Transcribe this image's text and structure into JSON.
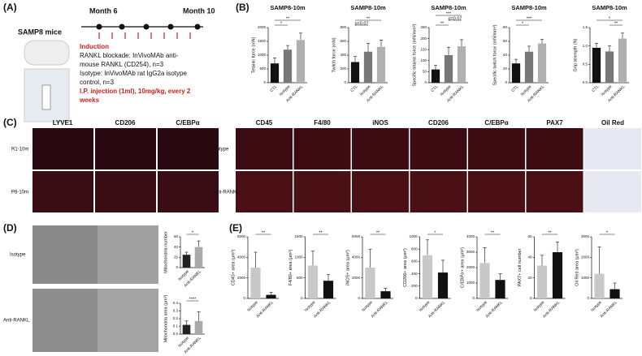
{
  "panels": {
    "a": {
      "label": "(A)",
      "strain": "SAMP8 mice",
      "start": "Month 6",
      "end": "Month 10",
      "lines": [
        "Induction",
        "RANKL blockade: InVivoMAb anti-",
        "mouse RANKL (CD254), n=3",
        "Isotype: InVivoMAb rat IgG2a isotype",
        "control, n=3",
        "I.P. injection (1ml), 10mg/kg, every 2",
        "weeks"
      ]
    },
    "b": {
      "label": "(B)"
    },
    "c": {
      "label": "(C)",
      "left_columns": [
        "LYVE1",
        "CD206",
        "C/EBPα"
      ],
      "left_rows": [
        "R1-10m",
        "P8-10m"
      ],
      "right_columns": [
        "CD45",
        "F4/80",
        "iNOS",
        "CD206",
        "C/EBPα",
        "PAX7",
        "Oil Red"
      ],
      "right_rows": [
        "Isotype",
        "Anti-RANKL"
      ]
    },
    "d": {
      "label": "(D)",
      "rows": [
        "Isotype",
        "Anti-RANKL"
      ]
    },
    "e": {
      "label": "(E)"
    }
  },
  "chart_data": [
    {
      "type": "bar",
      "title": "SAMP8-10m",
      "ylabel": "Tetanic force (mN)",
      "categories": [
        "CTL",
        "Isotype",
        "Anti-RANKL"
      ],
      "values": [
        700,
        1200,
        1550
      ],
      "errors": [
        200,
        150,
        250
      ],
      "colors": [
        "#111111",
        "#777777",
        "#b0b0b0"
      ],
      "ylim": [
        0,
        2000
      ],
      "yticks": [
        0,
        500,
        1000,
        1500,
        2000
      ],
      "annotations": [
        {
          "text": "*",
          "pair": [
            0,
            1
          ]
        },
        {
          "text": "**",
          "pair": [
            0,
            2
          ]
        }
      ]
    },
    {
      "type": "bar",
      "title": "SAMP8-10m",
      "ylabel": "Twitch force (mN)",
      "categories": [
        "CTL",
        "Isotype",
        "Anti-RANKL"
      ],
      "values": [
        300,
        450,
        520
      ],
      "errors": [
        80,
        120,
        100
      ],
      "colors": [
        "#111111",
        "#777777",
        "#b0b0b0"
      ],
      "ylim": [
        0,
        800
      ],
      "yticks": [
        0,
        200,
        400,
        600,
        800
      ],
      "annotations": [
        {
          "text": "p=0.07",
          "pair": [
            0,
            1
          ]
        },
        {
          "text": "**",
          "pair": [
            0,
            2
          ]
        }
      ]
    },
    {
      "type": "bar",
      "title": "SAMP8-10m",
      "ylabel": "Specific tetanic force (mN/mm²)",
      "categories": [
        "CTL",
        "Isotype",
        "Anti-RANKL"
      ],
      "values": [
        60,
        125,
        165
      ],
      "errors": [
        20,
        35,
        30
      ],
      "colors": [
        "#111111",
        "#777777",
        "#b0b0b0"
      ],
      "ylim": [
        0,
        250
      ],
      "yticks": [
        0,
        50,
        100,
        150,
        200,
        250
      ],
      "annotations": [
        {
          "text": "**",
          "pair": [
            0,
            1
          ]
        },
        {
          "text": "p=0.07",
          "pair": [
            1,
            2
          ]
        },
        {
          "text": "***",
          "pair": [
            0,
            2
          ]
        }
      ]
    },
    {
      "type": "bar",
      "title": "SAMP8-10m",
      "ylabel": "Specific twitch force (mN/mm²)",
      "categories": [
        "CTL",
        "Isotype",
        "Anti-RANKL"
      ],
      "values": [
        28,
        45,
        57
      ],
      "errors": [
        6,
        8,
        6
      ],
      "colors": [
        "#111111",
        "#777777",
        "#b0b0b0"
      ],
      "ylim": [
        0,
        80
      ],
      "yticks": [
        0,
        20,
        40,
        60,
        80
      ],
      "annotations": [
        {
          "text": "*",
          "pair": [
            0,
            1
          ]
        },
        {
          "text": "***",
          "pair": [
            0,
            2
          ]
        }
      ]
    },
    {
      "type": "bar",
      "title": "SAMP8-10m",
      "ylabel": "Grip strength (N)",
      "categories": [
        "CTL",
        "Isotype",
        "Anti-RANKL"
      ],
      "values": [
        0.95,
        0.85,
        1.2
      ],
      "errors": [
        0.12,
        0.15,
        0.15
      ],
      "colors": [
        "#111111",
        "#777777",
        "#b0b0b0"
      ],
      "ylim": [
        0,
        1.5
      ],
      "yticks": [
        {
          "value": 0,
          "label": "0.0"
        },
        0.5,
        {
          "value": 1,
          "label": "1.0"
        },
        1.5
      ],
      "annotations": [
        {
          "text": "**",
          "pair": [
            1,
            2
          ]
        },
        {
          "text": "*",
          "pair": [
            0,
            2
          ]
        }
      ]
    },
    {
      "type": "bar",
      "ylabel": "Mitochondria number",
      "categories": [
        "Isotype",
        "Anti-RANKL"
      ],
      "values": [
        25,
        40
      ],
      "errors": [
        5,
        12
      ],
      "colors": [
        "#222222",
        "#aaaaaa"
      ],
      "ylim": [
        0,
        60
      ],
      "yticks": [
        0,
        20,
        40,
        60
      ],
      "annotations": [
        {
          "text": "*",
          "pair": [
            0,
            1
          ]
        }
      ]
    },
    {
      "type": "bar",
      "ylabel": "Mitochondria area (μm²)",
      "categories": [
        "Isotype",
        "Anti-RANKL"
      ],
      "values": [
        0.12,
        0.17
      ],
      "errors": [
        0.05,
        0.12
      ],
      "colors": [
        "#222222",
        "#aaaaaa"
      ],
      "ylim": [
        0,
        0.4
      ],
      "yticks": [
        {
          "value": 0,
          "label": "0.0"
        },
        0.1,
        0.2,
        0.3,
        0.4
      ],
      "annotations": [
        {
          "text": "****",
          "pair": [
            0,
            1
          ]
        }
      ]
    },
    {
      "type": "bar",
      "ylabel": "CD45+ area (μm²)",
      "categories": [
        "Isotype",
        "Anti-RANKL"
      ],
      "values": [
        3000,
        350
      ],
      "errors": [
        1500,
        250
      ],
      "colors": [
        "#c8c8c8",
        "#111111"
      ],
      "ylim": [
        0,
        6000
      ],
      "yticks": [
        0,
        2000,
        4000,
        6000
      ],
      "annotations": [
        {
          "text": "**",
          "pair": [
            0,
            1
          ]
        }
      ]
    },
    {
      "type": "bar",
      "ylabel": "F4/80+ area (μm²)",
      "categories": [
        "Isotype",
        "Anti-RANKL"
      ],
      "values": [
        800,
        430
      ],
      "errors": [
        350,
        150
      ],
      "colors": [
        "#c8c8c8",
        "#111111"
      ],
      "ylim": [
        0,
        1500
      ],
      "yticks": [
        0,
        500,
        1000,
        1500
      ],
      "annotations": [
        {
          "text": "**",
          "pair": [
            0,
            1
          ]
        }
      ]
    },
    {
      "type": "bar",
      "ylabel": "iNOS+ area (μm²)",
      "categories": [
        "Isotype",
        "Anti-RANKL"
      ],
      "values": [
        3000,
        700
      ],
      "errors": [
        1800,
        300
      ],
      "colors": [
        "#c8c8c8",
        "#111111"
      ],
      "ylim": [
        0,
        6000
      ],
      "yticks": [
        0,
        2000,
        4000,
        6000
      ],
      "annotations": [
        {
          "text": "**",
          "pair": [
            0,
            1
          ]
        }
      ]
    },
    {
      "type": "bar",
      "ylabel": "CD206+ area (μm²)",
      "categories": [
        "Isotype",
        "Anti-RANKL"
      ],
      "values": [
        700,
        420
      ],
      "errors": [
        250,
        200
      ],
      "colors": [
        "#c8c8c8",
        "#111111"
      ],
      "ylim": [
        0,
        1000
      ],
      "yticks": [
        0,
        200,
        400,
        600,
        800,
        1000
      ],
      "annotations": [
        {
          "text": "*",
          "pair": [
            0,
            1
          ]
        }
      ]
    },
    {
      "type": "bar",
      "ylabel": "C/EBPα+ area (μm²)",
      "categories": [
        "Isotype",
        "Anti-RANKL"
      ],
      "values": [
        2300,
        1200
      ],
      "errors": [
        1000,
        400
      ],
      "colors": [
        "#c8c8c8",
        "#111111"
      ],
      "ylim": [
        0,
        4000
      ],
      "yticks": [
        0,
        1000,
        2000,
        3000,
        4000
      ],
      "annotations": [
        {
          "text": "**",
          "pair": [
            0,
            1
          ]
        }
      ]
    },
    {
      "type": "bar",
      "ylabel": "PAX7+ cell number",
      "categories": [
        "Isotype",
        "Anti-RANKL"
      ],
      "values": [
        32,
        45
      ],
      "errors": [
        10,
        10
      ],
      "colors": [
        "#c8c8c8",
        "#111111"
      ],
      "ylim": [
        0,
        60
      ],
      "yticks": [
        0,
        20,
        40,
        60
      ],
      "annotations": [
        {
          "text": "**",
          "pair": [
            0,
            1
          ]
        }
      ]
    },
    {
      "type": "bar",
      "ylabel": "Oil Red area (μm²)",
      "categories": [
        "Isotype",
        "Anti-RANKL"
      ],
      "values": [
        1200,
        450
      ],
      "errors": [
        1300,
        300
      ],
      "colors": [
        "#c8c8c8",
        "#111111"
      ],
      "ylim": [
        0,
        3000
      ],
      "yticks": [
        0,
        1000,
        2000,
        3000
      ],
      "annotations": [
        {
          "text": "*",
          "pair": [
            0,
            1
          ]
        }
      ]
    }
  ]
}
